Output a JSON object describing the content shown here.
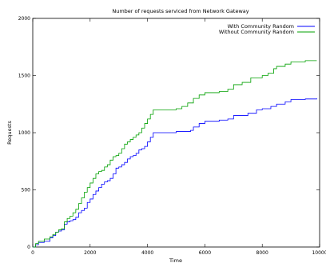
{
  "chart_data": {
    "type": "line",
    "title": "Number of requests serviced from Network Gateway",
    "xlabel": "Time",
    "ylabel": "Requests",
    "xlim": [
      0,
      10000
    ],
    "ylim": [
      0,
      2000
    ],
    "x_ticks": [
      "0",
      "2000",
      "4000",
      "6000",
      "8000",
      "10000"
    ],
    "y_ticks": [
      "0",
      "500",
      "1000",
      "1500",
      "2000"
    ],
    "grid": false,
    "legend_position": "top-right",
    "series": [
      {
        "name": "With Community Random",
        "color": "#0000ff",
        "x": [
          0,
          100,
          200,
          400,
          600,
          700,
          800,
          900,
          1000,
          1100,
          1200,
          1300,
          1400,
          1500,
          1600,
          1700,
          1800,
          1900,
          2000,
          2100,
          2200,
          2300,
          2400,
          2500,
          2600,
          2700,
          2800,
          2900,
          3000,
          3100,
          3200,
          3300,
          3400,
          3500,
          3600,
          3700,
          3800,
          3900,
          4000,
          4100,
          4200,
          4300,
          4600,
          5000,
          5500,
          5600,
          5800,
          6000,
          6500,
          6800,
          7000,
          7500,
          7800,
          8000,
          8300,
          8500,
          8800,
          9000,
          9500,
          9900
        ],
        "y": [
          0,
          20,
          40,
          50,
          80,
          100,
          130,
          140,
          150,
          200,
          220,
          230,
          240,
          260,
          300,
          320,
          340,
          390,
          420,
          460,
          490,
          520,
          550,
          570,
          580,
          600,
          640,
          690,
          700,
          720,
          740,
          770,
          790,
          800,
          820,
          850,
          860,
          880,
          920,
          960,
          1000,
          1000,
          1000,
          1010,
          1020,
          1050,
          1080,
          1100,
          1110,
          1120,
          1150,
          1170,
          1200,
          1210,
          1230,
          1250,
          1270,
          1290,
          1295,
          1300
        ]
      },
      {
        "name": "Without Community Random",
        "color": "#00a000",
        "x": [
          0,
          100,
          200,
          400,
          600,
          700,
          800,
          900,
          1000,
          1100,
          1200,
          1300,
          1400,
          1500,
          1600,
          1700,
          1800,
          1900,
          2000,
          2100,
          2200,
          2300,
          2400,
          2500,
          2600,
          2700,
          2800,
          2900,
          3000,
          3100,
          3200,
          3300,
          3400,
          3500,
          3600,
          3700,
          3800,
          3900,
          4000,
          4100,
          4200,
          4300,
          4600,
          5000,
          5200,
          5400,
          5600,
          5800,
          6000,
          6500,
          6800,
          7000,
          7300,
          7600,
          8000,
          8200,
          8400,
          8500,
          8800,
          9000,
          9500,
          9900
        ],
        "y": [
          0,
          30,
          50,
          70,
          90,
          110,
          130,
          150,
          160,
          220,
          250,
          270,
          300,
          330,
          380,
          430,
          480,
          520,
          560,
          600,
          640,
          660,
          670,
          700,
          720,
          760,
          790,
          800,
          820,
          860,
          900,
          920,
          940,
          960,
          980,
          1000,
          1040,
          1080,
          1120,
          1160,
          1200,
          1200,
          1200,
          1210,
          1230,
          1260,
          1300,
          1330,
          1350,
          1360,
          1380,
          1420,
          1440,
          1480,
          1500,
          1520,
          1560,
          1580,
          1600,
          1620,
          1630,
          1630
        ]
      }
    ]
  }
}
